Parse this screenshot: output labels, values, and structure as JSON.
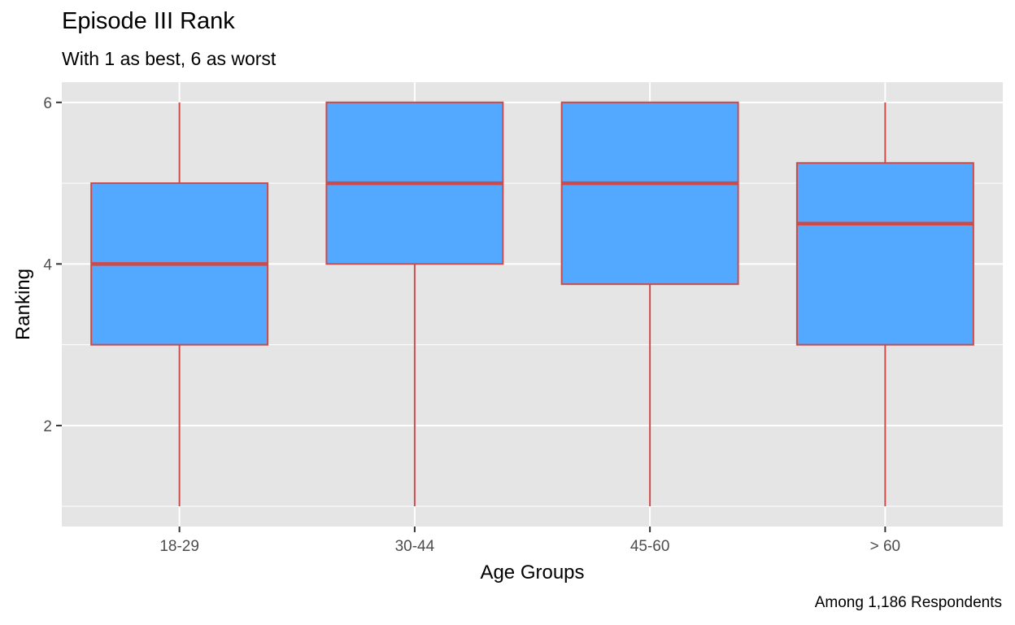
{
  "chart_data": {
    "type": "boxplot",
    "title": "Episode III Rank",
    "subtitle": "With 1 as best, 6 as worst",
    "caption": "Among 1,186 Respondents",
    "xlabel": "Age Groups",
    "ylabel": "Ranking",
    "categories": [
      "18-29",
      "30-44",
      "45-60",
      "> 60"
    ],
    "boxes": [
      {
        "category": "18-29",
        "min": 1,
        "q1": 3,
        "median": 4,
        "q3": 5,
        "max": 6
      },
      {
        "category": "30-44",
        "min": 1,
        "q1": 4,
        "median": 5,
        "q3": 6,
        "max": 6
      },
      {
        "category": "45-60",
        "min": 1,
        "q1": 3.75,
        "median": 5,
        "q3": 6,
        "max": 6
      },
      {
        "category": "> 60",
        "min": 1,
        "q1": 3,
        "median": 4.5,
        "q3": 5.25,
        "max": 6
      }
    ],
    "y_ticks": [
      2,
      4,
      6
    ],
    "ylim": [
      0.75,
      6.25
    ],
    "grid": true,
    "colors": {
      "panel_background": "#e5e5e5",
      "grid": "#ffffff",
      "box_fill": "#53a8ff",
      "box_outline": "#cd4a4a"
    }
  }
}
